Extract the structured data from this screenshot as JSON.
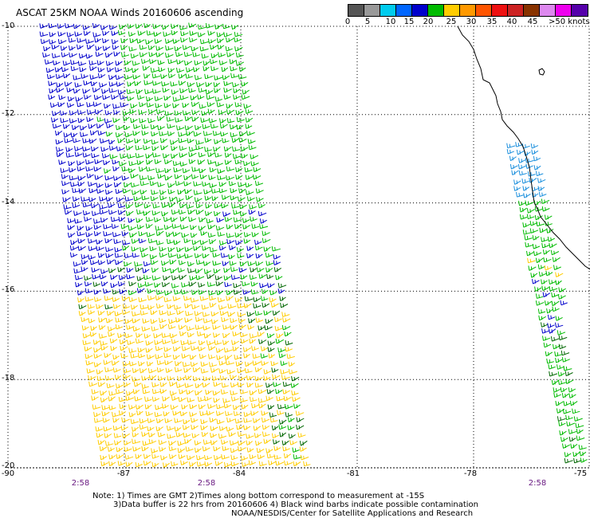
{
  "title": "ASCAT 25KM NOAA Winds 20160606 ascending",
  "legend": {
    "colors": [
      "#555555",
      "#999999",
      "#00ccee",
      "#0066ff",
      "#0000cc",
      "#00bb00",
      "#ffcc00",
      "#ff9900",
      "#ff5500",
      "#ee1111",
      "#cc2222",
      "#883300",
      "#dd88ee",
      "#ee00ee",
      "#5500aa"
    ],
    "labels": [
      "0",
      "5",
      "10",
      "15",
      "20",
      "25",
      "30",
      "35",
      "40",
      "45",
      ">50 knots"
    ]
  },
  "axes": {
    "lat_labels": [
      "-10",
      "-12",
      "-14",
      "-16",
      "-18",
      "-20"
    ],
    "lon_labels": [
      "-90",
      "-87",
      "-84",
      "-81",
      "-78",
      "-75"
    ],
    "time_labels": [
      "2:58",
      "2:58",
      "2:58"
    ]
  },
  "wind_colors": {
    "blue": "#0000cc",
    "light_blue": "#1a8fdd",
    "green": "#00bb00",
    "dark_green": "#006600",
    "yellow": "#ffcc00",
    "coast": "#000000"
  },
  "notes": {
    "line1": "Note: 1) Times are GMT 2)Times along bottom correspond to measurement at -15S",
    "line2": "3)Data buffer is 22 hrs from 20160606 4) Black wind barbs indicate possible contamination",
    "line3": "NOAA/NESDIS/Center for Satellite Applications and Research"
  }
}
